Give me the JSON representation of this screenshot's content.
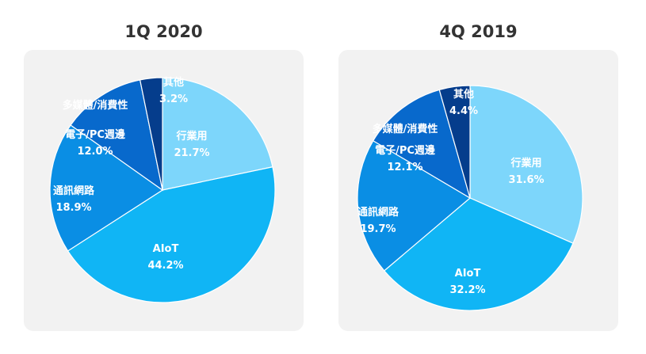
{
  "chart_data": [
    {
      "type": "pie",
      "title": "1Q 2020",
      "slices": [
        {
          "label": "行業用",
          "value": 21.7,
          "value_text": "21.7%",
          "color": "#7dd6fb"
        },
        {
          "label": "AIoT",
          "value": 44.2,
          "value_text": "44.2%",
          "color": "#10b5f5"
        },
        {
          "label": "通訊網路",
          "value": 18.9,
          "value_text": "18.9%",
          "color": "#0a8ee4"
        },
        {
          "label": "電子/PC週邊",
          "value": 12.0,
          "value_text": "12.0%",
          "color": "#0869cc"
        },
        {
          "label": "多媒體/消費性",
          "value": 0,
          "value_text": "",
          "color": "#0869cc"
        },
        {
          "label": "其他",
          "value": 3.2,
          "value_text": "3.2%",
          "color": "#053d8c"
        }
      ]
    },
    {
      "type": "pie",
      "title": "4Q 2019",
      "slices": [
        {
          "label": "行業用",
          "value": 31.6,
          "value_text": "31.6%",
          "color": "#7dd6fb"
        },
        {
          "label": "AIoT",
          "value": 32.2,
          "value_text": "32.2%",
          "color": "#10b5f5"
        },
        {
          "label": "通訊網路",
          "value": 19.7,
          "value_text": "19.7%",
          "color": "#0a8ee4"
        },
        {
          "label": "電子/PC週邊",
          "value": 12.1,
          "value_text": "12.1%",
          "color": "#0869cc"
        },
        {
          "label": "多媒體/消費性",
          "value": 0,
          "value_text": "",
          "color": "#0869cc"
        },
        {
          "label": "其他",
          "value": 4.4,
          "value_text": "4.4%",
          "color": "#053d8c"
        }
      ]
    }
  ]
}
